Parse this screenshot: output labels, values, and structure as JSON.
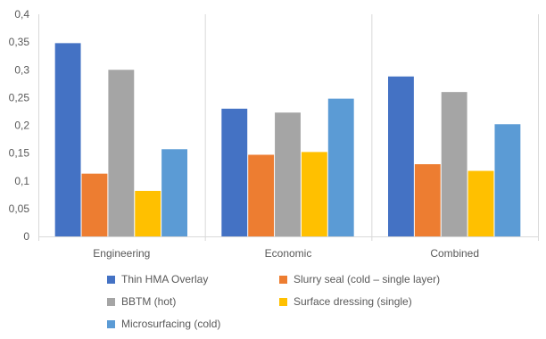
{
  "chart_data": {
    "type": "bar",
    "categories": [
      "Engineering",
      "Economic",
      "Combined"
    ],
    "series": [
      {
        "name": "Thin HMA Overlay",
        "color": "#4472C4",
        "values": [
          0.348,
          0.23,
          0.288
        ]
      },
      {
        "name": "Slurry seal (cold – single layer)",
        "color": "#ED7D31",
        "values": [
          0.113,
          0.147,
          0.13
        ]
      },
      {
        "name": "BBTM (hot)",
        "color": "#A5A5A5",
        "values": [
          0.3,
          0.223,
          0.26
        ]
      },
      {
        "name": "Surface dressing (single)",
        "color": "#FFC000",
        "values": [
          0.082,
          0.152,
          0.118
        ]
      },
      {
        "name": "Microsurfacing (cold)",
        "color": "#5B9BD5",
        "values": [
          0.157,
          0.248,
          0.202
        ]
      }
    ],
    "y_ticks": [
      "0",
      "0,05",
      "0,1",
      "0,15",
      "0,2",
      "0,25",
      "0,3",
      "0,35",
      "0,4"
    ],
    "ylim": [
      0,
      0.4
    ],
    "grid": "category-separators",
    "legend_position": "bottom",
    "title": "",
    "xlabel": "",
    "ylabel": ""
  }
}
